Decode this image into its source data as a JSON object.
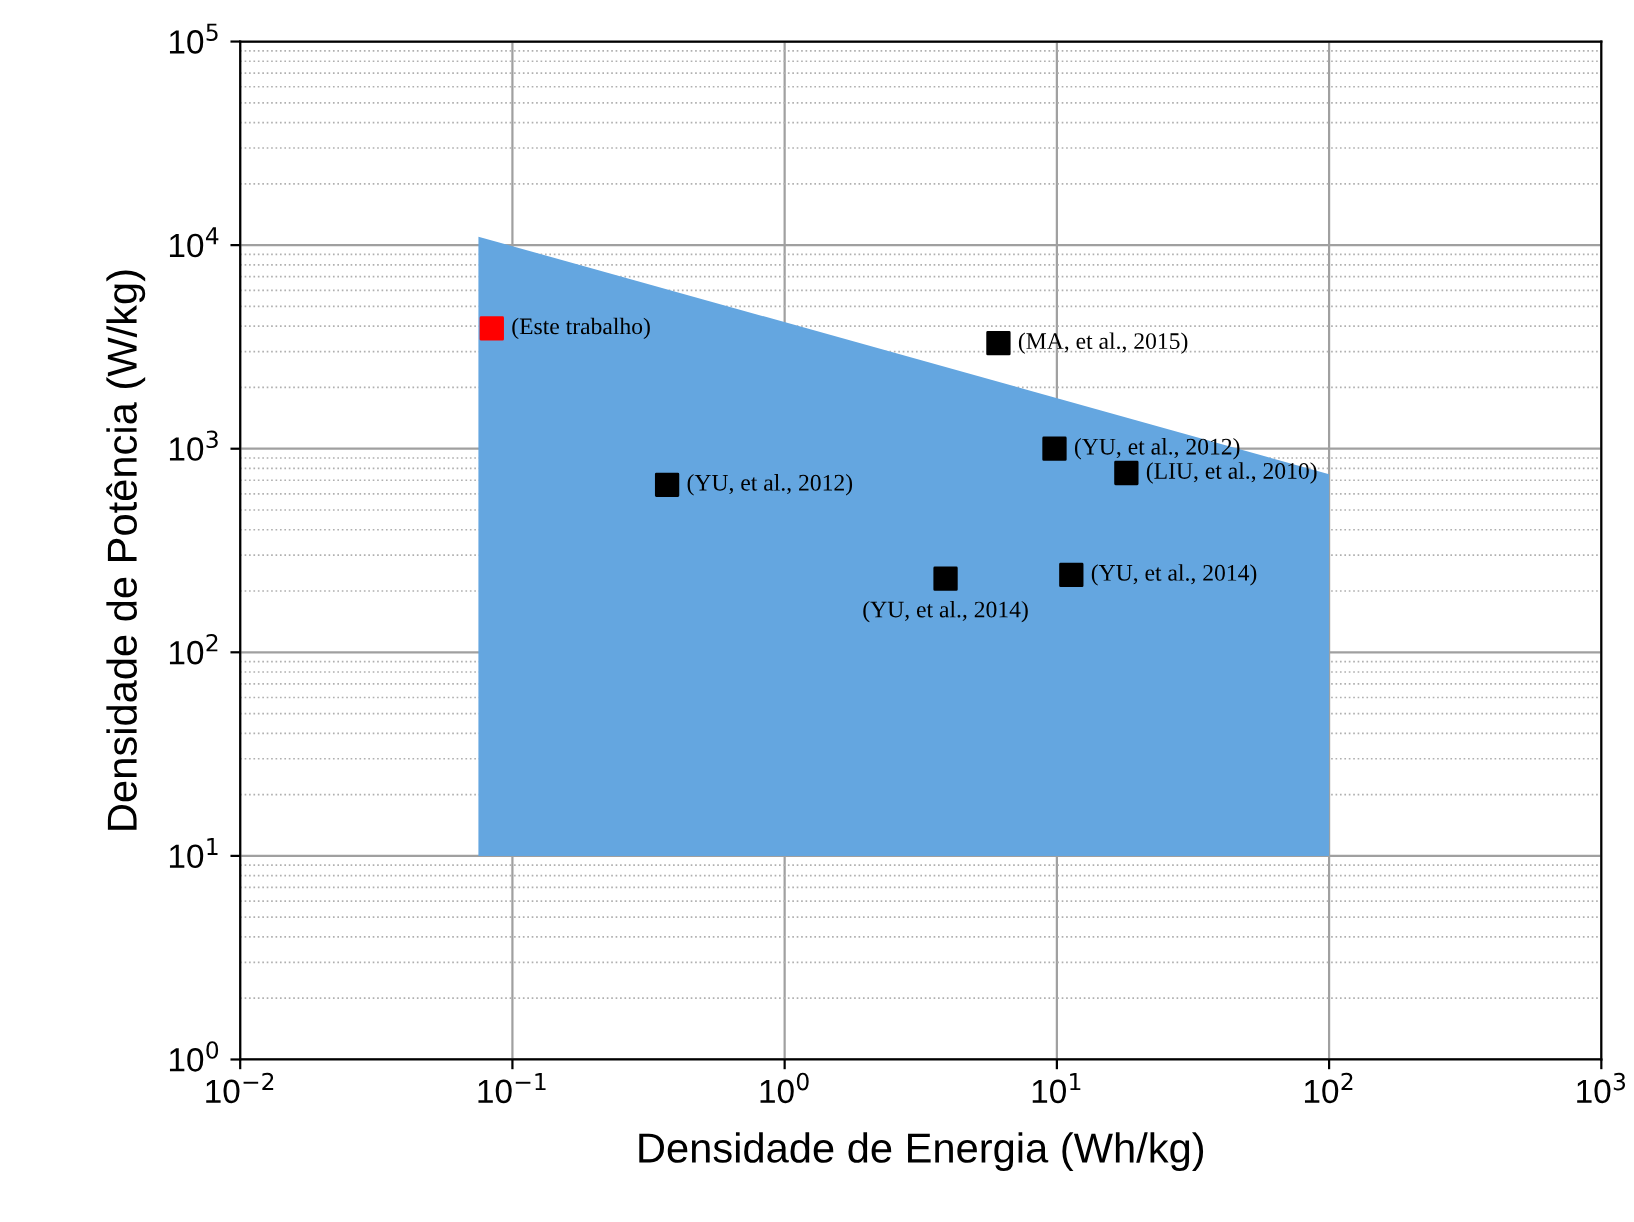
{
  "chart_data": {
    "type": "scatter",
    "xlabel": "Densidade de Energia (Wh/kg)",
    "ylabel": "Densidade de Potência (W/kg)",
    "log": "xy",
    "xlim": [
      0.01,
      1000
    ],
    "ylim": [
      1,
      100000
    ],
    "xticks": [
      {
        "value": 0.01,
        "label": "10$^{−2}$"
      },
      {
        "value": 0.1,
        "label": "10$^{−1}$"
      },
      {
        "value": 1,
        "label": "10$^{0}$"
      },
      {
        "value": 10,
        "label": "10$^{1}$"
      },
      {
        "value": 100,
        "label": "10$^{2}$"
      },
      {
        "value": 1000,
        "label": "10$^{3}$"
      }
    ],
    "yticks": [
      {
        "value": 1,
        "label": "10$^{0}$"
      },
      {
        "value": 10,
        "label": "10$^{1}$"
      },
      {
        "value": 100,
        "label": "10$^{2}$"
      },
      {
        "value": 1000,
        "label": "10$^{3}$"
      },
      {
        "value": 10000,
        "label": "10$^{4}$"
      },
      {
        "value": 100000,
        "label": "10$^{5}$"
      }
    ],
    "grid": true,
    "legend": false,
    "series": [
      {
        "type": "area",
        "color": "#64a6e0",
        "x": [
          0.075,
          100,
          100,
          0.075
        ],
        "values": [
          11000,
          750,
          10,
          10
        ]
      },
      {
        "marker": "square",
        "color": "#000000",
        "x": [
          6.1,
          9.8,
          18,
          0.37,
          3.9,
          11.3
        ],
        "values": [
          3300,
          1000,
          760,
          665,
          230,
          240
        ]
      },
      {
        "marker": "square",
        "color": "#ff0000",
        "x": [
          0.084
        ],
        "values": [
          3900
        ]
      }
    ],
    "annotations": [
      {
        "text": "(Este trabalho)",
        "x": 0.084,
        "y": 3900
      },
      {
        "text": "(MA, et al., 2015)",
        "x": 6.1,
        "y": 3300
      },
      {
        "text": "(YU, et al., 2012)",
        "x": 9.8,
        "y": 1000
      },
      {
        "text": "(LIU, et al., 2010)",
        "x": 18,
        "y": 760
      },
      {
        "text": "(YU, et al., 2012)",
        "x": 0.37,
        "y": 665
      },
      {
        "text": "(YU, et al., 2014)",
        "x": 3.9,
        "y": 230
      },
      {
        "text": "(YU, et al., 2014)",
        "x": 11.3,
        "y": 240
      }
    ]
  }
}
